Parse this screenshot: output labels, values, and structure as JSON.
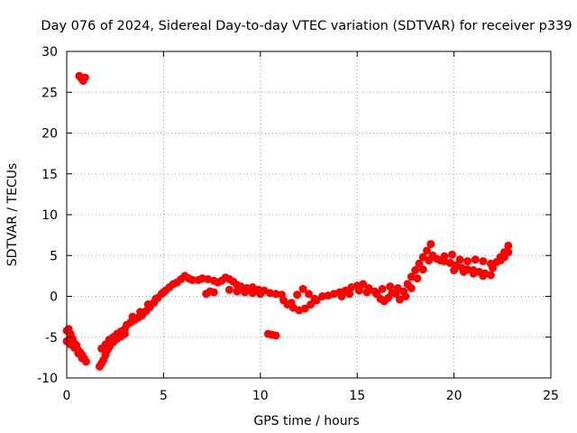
{
  "chart_data": {
    "type": "scatter",
    "title": "Day 076 of 2024, Sidereal Day-to-day VTEC variation (SDTVAR) for receiver p339",
    "xlabel": "GPS time / hours",
    "ylabel": "SDTVAR / TECUs",
    "xlim": [
      0,
      25
    ],
    "ylim": [
      -10,
      30
    ],
    "xticks": [
      0,
      5,
      10,
      15,
      20,
      25
    ],
    "yticks": [
      -10,
      -5,
      0,
      5,
      10,
      15,
      20,
      25,
      30
    ],
    "grid": true,
    "series": [
      {
        "name": "SDTVAR",
        "color": "#ff0000",
        "points": [
          [
            0.0,
            -4.2
          ],
          [
            0.1,
            -4.0
          ],
          [
            0.2,
            -4.6
          ],
          [
            0.3,
            -5.2
          ],
          [
            0.4,
            -5.8
          ],
          [
            0.5,
            -6.0
          ],
          [
            0.6,
            -6.6
          ],
          [
            0.7,
            -6.9
          ],
          [
            0.8,
            -7.2
          ],
          [
            0.9,
            -7.6
          ],
          [
            1.0,
            -8.0
          ],
          [
            0.0,
            -5.5
          ],
          [
            0.2,
            -5.9
          ],
          [
            0.4,
            -6.3
          ],
          [
            0.6,
            -7.0
          ],
          [
            0.8,
            -7.6
          ],
          [
            0.65,
            27.0
          ],
          [
            0.75,
            26.7
          ],
          [
            0.85,
            26.4
          ],
          [
            0.95,
            26.8
          ],
          [
            1.7,
            -8.6
          ],
          [
            1.8,
            -8.2
          ],
          [
            1.9,
            -7.8
          ],
          [
            2.0,
            -7.2
          ],
          [
            2.1,
            -6.6
          ],
          [
            2.2,
            -6.2
          ],
          [
            2.3,
            -5.8
          ],
          [
            2.4,
            -5.6
          ],
          [
            2.5,
            -5.3
          ],
          [
            2.6,
            -5.2
          ],
          [
            2.8,
            -4.9
          ],
          [
            3.0,
            -4.6
          ],
          [
            1.8,
            -6.4
          ],
          [
            2.0,
            -5.9
          ],
          [
            2.2,
            -5.3
          ],
          [
            2.4,
            -5.0
          ],
          [
            2.6,
            -4.6
          ],
          [
            2.8,
            -4.3
          ],
          [
            3.0,
            -4.0
          ],
          [
            3.1,
            -3.5
          ],
          [
            3.3,
            -3.2
          ],
          [
            3.5,
            -2.9
          ],
          [
            3.7,
            -2.6
          ],
          [
            3.9,
            -2.3
          ],
          [
            4.1,
            -1.8
          ],
          [
            4.3,
            -1.3
          ],
          [
            4.5,
            -0.8
          ],
          [
            4.7,
            -0.2
          ],
          [
            4.9,
            0.3
          ],
          [
            5.1,
            0.7
          ],
          [
            5.3,
            1.1
          ],
          [
            5.5,
            1.5
          ],
          [
            3.4,
            -2.5
          ],
          [
            3.8,
            -1.9
          ],
          [
            4.2,
            -1.0
          ],
          [
            4.6,
            -0.3
          ],
          [
            5.0,
            0.5
          ],
          [
            5.7,
            1.7
          ],
          [
            5.9,
            2.1
          ],
          [
            6.1,
            2.5
          ],
          [
            6.3,
            2.2
          ],
          [
            6.5,
            2.0
          ],
          [
            6.8,
            2.0
          ],
          [
            7.0,
            2.2
          ],
          [
            7.3,
            2.1
          ],
          [
            7.6,
            1.9
          ],
          [
            7.8,
            1.7
          ],
          [
            7.2,
            0.3
          ],
          [
            7.4,
            0.6
          ],
          [
            7.6,
            0.5
          ],
          [
            8.0,
            1.9
          ],
          [
            8.2,
            2.3
          ],
          [
            8.4,
            2.1
          ],
          [
            8.6,
            1.8
          ],
          [
            8.8,
            1.4
          ],
          [
            9.0,
            1.2
          ],
          [
            9.3,
            1.0
          ],
          [
            9.6,
            1.1
          ],
          [
            9.9,
            0.8
          ],
          [
            10.2,
            0.7
          ],
          [
            10.5,
            0.4
          ],
          [
            10.8,
            0.3
          ],
          [
            8.4,
            0.8
          ],
          [
            8.8,
            0.6
          ],
          [
            9.2,
            0.5
          ],
          [
            9.6,
            0.4
          ],
          [
            10.0,
            0.3
          ],
          [
            10.4,
            -4.6
          ],
          [
            10.6,
            -4.7
          ],
          [
            10.8,
            -4.8
          ],
          [
            11.1,
            0.2
          ],
          [
            11.2,
            -0.5
          ],
          [
            11.4,
            -1.0
          ],
          [
            11.7,
            -1.4
          ],
          [
            12.0,
            -1.7
          ],
          [
            12.3,
            -1.5
          ],
          [
            12.6,
            -1.0
          ],
          [
            12.9,
            -0.5
          ],
          [
            13.2,
            0.0
          ],
          [
            11.6,
            -0.8
          ],
          [
            11.9,
            0.2
          ],
          [
            12.2,
            0.9
          ],
          [
            12.5,
            0.3
          ],
          [
            12.8,
            -0.3
          ],
          [
            13.5,
            0.1
          ],
          [
            13.8,
            0.3
          ],
          [
            14.1,
            0.5
          ],
          [
            14.4,
            0.7
          ],
          [
            14.7,
            1.1
          ],
          [
            15.0,
            1.3
          ],
          [
            15.3,
            1.5
          ],
          [
            15.6,
            1.0
          ],
          [
            15.9,
            0.6
          ],
          [
            14.2,
            0.0
          ],
          [
            14.6,
            0.3
          ],
          [
            15.1,
            0.7
          ],
          [
            15.5,
            0.5
          ],
          [
            16.0,
            0.3
          ],
          [
            16.2,
            -0.3
          ],
          [
            16.4,
            -0.6
          ],
          [
            16.6,
            -0.2
          ],
          [
            16.8,
            0.4
          ],
          [
            17.0,
            0.3
          ],
          [
            17.2,
            -0.4
          ],
          [
            16.3,
            0.9
          ],
          [
            16.7,
            1.2
          ],
          [
            17.1,
            1.0
          ],
          [
            17.4,
            0.6
          ],
          [
            17.6,
            1.5
          ],
          [
            17.8,
            2.4
          ],
          [
            18.0,
            3.2
          ],
          [
            18.2,
            4.0
          ],
          [
            18.4,
            4.8
          ],
          [
            18.6,
            5.6
          ],
          [
            18.8,
            6.4
          ],
          [
            17.5,
            0.0
          ],
          [
            17.8,
            1.0
          ],
          [
            18.1,
            2.2
          ],
          [
            18.4,
            3.3
          ],
          [
            18.7,
            4.4
          ],
          [
            18.9,
            5.0
          ],
          [
            19.1,
            4.6
          ],
          [
            19.3,
            4.4
          ],
          [
            19.5,
            4.3
          ],
          [
            19.8,
            4.1
          ],
          [
            20.1,
            3.8
          ],
          [
            20.4,
            3.5
          ],
          [
            20.7,
            3.3
          ],
          [
            21.0,
            3.2
          ],
          [
            21.3,
            3.0
          ],
          [
            21.6,
            2.8
          ],
          [
            21.9,
            2.6
          ],
          [
            19.5,
            4.9
          ],
          [
            19.9,
            5.1
          ],
          [
            20.3,
            4.5
          ],
          [
            20.7,
            4.3
          ],
          [
            21.1,
            4.5
          ],
          [
            21.5,
            4.3
          ],
          [
            21.9,
            4.0
          ],
          [
            20.0,
            3.2
          ],
          [
            20.5,
            3.0
          ],
          [
            21.0,
            2.8
          ],
          [
            21.5,
            2.5
          ],
          [
            22.0,
            3.5
          ],
          [
            22.2,
            4.2
          ],
          [
            22.4,
            4.8
          ],
          [
            22.6,
            5.4
          ],
          [
            22.8,
            6.2
          ],
          [
            22.8,
            5.4
          ],
          [
            22.6,
            4.8
          ],
          [
            22.4,
            4.4
          ]
        ]
      }
    ]
  }
}
